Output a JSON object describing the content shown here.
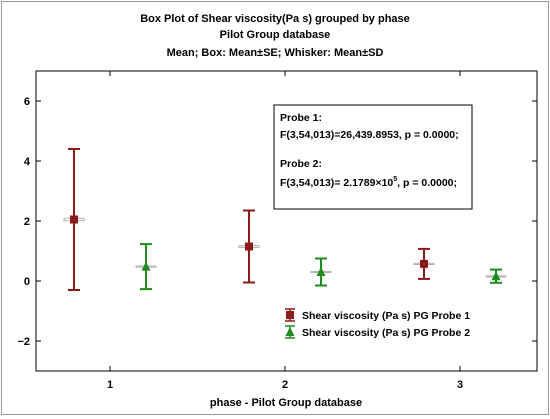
{
  "chart_data": {
    "type": "box",
    "title": "Box Plot of Shear viscosity(Pa s) grouped by  phase",
    "subtitle": "Pilot Group database",
    "description_line": "Mean; Box: Mean±SE; Whisker: Mean±SD",
    "xlabel": "phase - Pilot Group database",
    "ylabel": "",
    "categories": [
      "1",
      "2",
      "3"
    ],
    "ylim": [
      -3,
      7
    ],
    "yticks": [
      -2,
      0,
      2,
      4,
      6
    ],
    "ytick_labels": [
      "−2",
      "0",
      "2",
      "4",
      "6"
    ],
    "grid": false,
    "legend_position": "lower-right",
    "series": [
      {
        "name": "Shear viscosity (Pa s) PG Probe 1",
        "color": "#8b1a1a",
        "marker": "square",
        "mean": [
          2.05,
          1.15,
          0.57
        ],
        "se": [
          0.04,
          0.03,
          0.02
        ],
        "sd": [
          2.35,
          1.2,
          0.5
        ]
      },
      {
        "name": "Shear viscosity (Pa s) PG Probe 2",
        "color": "#1e8c1e",
        "marker": "triangle",
        "mean": [
          0.48,
          0.3,
          0.16
        ],
        "se": [
          0.02,
          0.015,
          0.01
        ],
        "sd": [
          0.75,
          0.45,
          0.22
        ]
      }
    ],
    "annotation": {
      "probe1_label": "Probe 1:",
      "probe1_stat": "F(3,54,013)=26,439.8953, p = 0.0000;",
      "probe2_label": "Probe 2:",
      "probe2_stat_pre": "F(3,54,013)= 2.1789×10",
      "probe2_stat_exp": "5",
      "probe2_stat_post": ", p = 0.0000;"
    }
  }
}
